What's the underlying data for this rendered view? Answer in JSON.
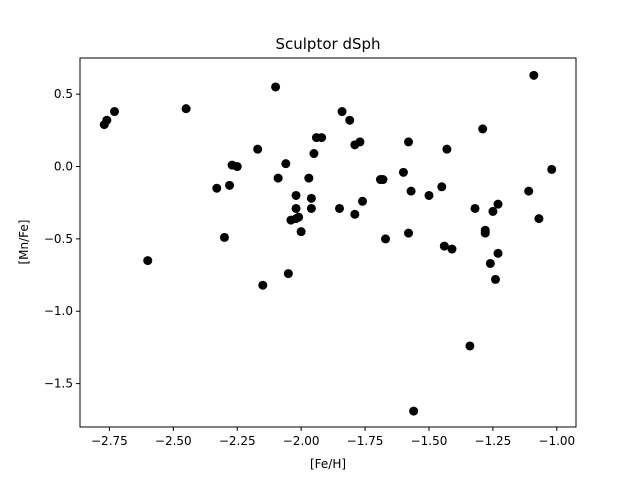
{
  "chart_data": {
    "type": "scatter",
    "title": "Sculptor dSph",
    "xlabel": "[Fe/H]",
    "ylabel": "[Mn/Fe]",
    "xlim": [
      -2.865,
      -0.925
    ],
    "ylim": [
      -1.8,
      0.75
    ],
    "grid": false,
    "legend": "none",
    "marker_color": "#000000",
    "xticks": [
      {
        "value": -2.75,
        "label": "−2.75"
      },
      {
        "value": -2.5,
        "label": "−2.50"
      },
      {
        "value": -2.25,
        "label": "−2.25"
      },
      {
        "value": -2.0,
        "label": "−2.00"
      },
      {
        "value": -1.75,
        "label": "−1.75"
      },
      {
        "value": -1.5,
        "label": "−1.50"
      },
      {
        "value": -1.25,
        "label": "−1.25"
      },
      {
        "value": -1.0,
        "label": "−1.00"
      }
    ],
    "yticks": [
      {
        "value": 0.5,
        "label": "0.5"
      },
      {
        "value": 0.0,
        "label": "0.0"
      },
      {
        "value": -0.5,
        "label": "−0.5"
      },
      {
        "value": -1.0,
        "label": "−1.0"
      },
      {
        "value": -1.5,
        "label": "−1.5"
      }
    ],
    "points": [
      {
        "x": -2.77,
        "y": 0.29
      },
      {
        "x": -2.76,
        "y": 0.32
      },
      {
        "x": -2.73,
        "y": 0.38
      },
      {
        "x": -2.6,
        "y": -0.65
      },
      {
        "x": -2.45,
        "y": 0.4
      },
      {
        "x": -2.33,
        "y": -0.15
      },
      {
        "x": -2.3,
        "y": -0.49
      },
      {
        "x": -2.28,
        "y": -0.13
      },
      {
        "x": -2.27,
        "y": 0.01
      },
      {
        "x": -2.25,
        "y": 0.0
      },
      {
        "x": -2.17,
        "y": 0.12
      },
      {
        "x": -2.15,
        "y": -0.82
      },
      {
        "x": -2.1,
        "y": 0.55
      },
      {
        "x": -2.09,
        "y": -0.08
      },
      {
        "x": -2.06,
        "y": 0.02
      },
      {
        "x": -2.05,
        "y": -0.74
      },
      {
        "x": -2.04,
        "y": -0.37
      },
      {
        "x": -2.02,
        "y": -0.2
      },
      {
        "x": -2.02,
        "y": -0.29
      },
      {
        "x": -2.02,
        "y": -0.36
      },
      {
        "x": -2.01,
        "y": -0.35
      },
      {
        "x": -2.0,
        "y": -0.45
      },
      {
        "x": -1.97,
        "y": -0.08
      },
      {
        "x": -1.96,
        "y": -0.22
      },
      {
        "x": -1.96,
        "y": -0.29
      },
      {
        "x": -1.95,
        "y": 0.09
      },
      {
        "x": -1.94,
        "y": 0.2
      },
      {
        "x": -1.92,
        "y": 0.2
      },
      {
        "x": -1.85,
        "y": -0.29
      },
      {
        "x": -1.84,
        "y": 0.38
      },
      {
        "x": -1.81,
        "y": 0.32
      },
      {
        "x": -1.79,
        "y": 0.15
      },
      {
        "x": -1.79,
        "y": -0.33
      },
      {
        "x": -1.77,
        "y": 0.17
      },
      {
        "x": -1.76,
        "y": -0.24
      },
      {
        "x": -1.69,
        "y": -0.09
      },
      {
        "x": -1.68,
        "y": -0.09
      },
      {
        "x": -1.67,
        "y": -0.5
      },
      {
        "x": -1.6,
        "y": -0.04
      },
      {
        "x": -1.58,
        "y": 0.17
      },
      {
        "x": -1.58,
        "y": -0.46
      },
      {
        "x": -1.57,
        "y": -0.17
      },
      {
        "x": -1.56,
        "y": -1.69
      },
      {
        "x": -1.5,
        "y": -0.2
      },
      {
        "x": -1.45,
        "y": -0.14
      },
      {
        "x": -1.44,
        "y": -0.55
      },
      {
        "x": -1.43,
        "y": 0.12
      },
      {
        "x": -1.41,
        "y": -0.57
      },
      {
        "x": -1.34,
        "y": -1.24
      },
      {
        "x": -1.32,
        "y": -0.29
      },
      {
        "x": -1.29,
        "y": 0.26
      },
      {
        "x": -1.28,
        "y": -0.44
      },
      {
        "x": -1.28,
        "y": -0.46
      },
      {
        "x": -1.26,
        "y": -0.67
      },
      {
        "x": -1.25,
        "y": -0.31
      },
      {
        "x": -1.24,
        "y": -0.78
      },
      {
        "x": -1.23,
        "y": -0.26
      },
      {
        "x": -1.23,
        "y": -0.6
      },
      {
        "x": -1.11,
        "y": -0.17
      },
      {
        "x": -1.09,
        "y": 0.63
      },
      {
        "x": -1.07,
        "y": -0.36
      },
      {
        "x": -1.02,
        "y": -0.02
      }
    ]
  }
}
